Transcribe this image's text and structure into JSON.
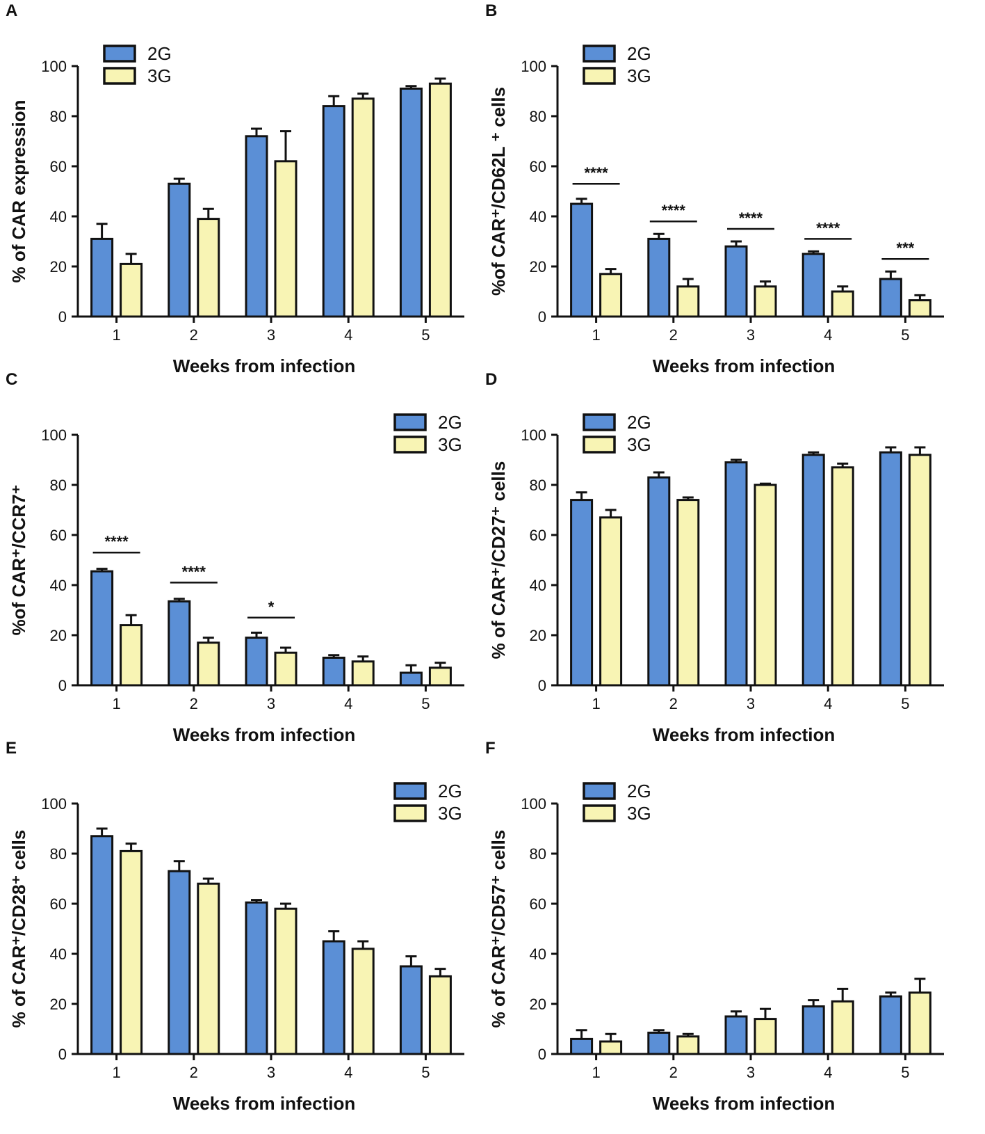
{
  "colors": {
    "g2": "#5b8fd6",
    "g3": "#f8f4b4",
    "stroke": "#111111"
  },
  "chart_data": [
    {
      "panel": "A",
      "type": "bar",
      "categories": [
        "1",
        "2",
        "3",
        "4",
        "5"
      ],
      "series": [
        {
          "name": "2G",
          "values": [
            31,
            53,
            72,
            84,
            91
          ],
          "errors": [
            6,
            2,
            3,
            4,
            1
          ]
        },
        {
          "name": "3G",
          "values": [
            21,
            39,
            62,
            87,
            93
          ],
          "errors": [
            4,
            4,
            12,
            2,
            2
          ]
        }
      ],
      "ylim": [
        0,
        100
      ],
      "yticks": [
        "0",
        "20",
        "40",
        "60",
        "80",
        "100"
      ],
      "ylabel": "% of CAR expression",
      "xlabel": "Weeks from infection",
      "legend": "top-left",
      "significance": []
    },
    {
      "panel": "B",
      "type": "bar",
      "categories": [
        "1",
        "2",
        "3",
        "4",
        "5"
      ],
      "series": [
        {
          "name": "2G",
          "values": [
            45,
            31,
            28,
            25,
            15
          ],
          "errors": [
            2,
            2,
            2,
            1,
            3
          ]
        },
        {
          "name": "3G",
          "values": [
            17,
            12,
            12,
            10,
            6.5
          ],
          "errors": [
            2,
            3,
            2,
            2,
            2
          ]
        }
      ],
      "ylim": [
        0,
        100
      ],
      "yticks": [
        "0",
        "20",
        "40",
        "60",
        "80",
        "100"
      ],
      "ylabel": "%of CAR⁺/CD62L ⁺ cells",
      "xlabel": "Weeks from infection",
      "legend": "top-left",
      "significance": [
        {
          "group": 0,
          "label": "****",
          "level": 53
        },
        {
          "group": 1,
          "label": "****",
          "level": 38
        },
        {
          "group": 2,
          "label": "****",
          "level": 35
        },
        {
          "group": 3,
          "label": "****",
          "level": 31
        },
        {
          "group": 4,
          "label": "***",
          "level": 23
        }
      ]
    },
    {
      "panel": "C",
      "type": "bar",
      "categories": [
        "1",
        "2",
        "3",
        "4",
        "5"
      ],
      "series": [
        {
          "name": "2G",
          "values": [
            45.5,
            33.5,
            19,
            11,
            5
          ],
          "errors": [
            1,
            1,
            2,
            1,
            3
          ]
        },
        {
          "name": "3G",
          "values": [
            24,
            17,
            13,
            9.5,
            7
          ],
          "errors": [
            4,
            2,
            2,
            2,
            2
          ]
        }
      ],
      "ylim": [
        0,
        100
      ],
      "yticks": [
        "0",
        "20",
        "40",
        "60",
        "80",
        "100"
      ],
      "ylabel": "%of CAR⁺/CCR7⁺",
      "xlabel": "Weeks from infection",
      "legend": "top-right",
      "significance": [
        {
          "group": 0,
          "label": "****",
          "level": 53
        },
        {
          "group": 1,
          "label": "****",
          "level": 41
        },
        {
          "group": 2,
          "label": "*",
          "level": 27
        }
      ]
    },
    {
      "panel": "D",
      "type": "bar",
      "categories": [
        "1",
        "2",
        "3",
        "4",
        "5"
      ],
      "series": [
        {
          "name": "2G",
          "values": [
            74,
            83,
            89,
            92,
            93
          ],
          "errors": [
            3,
            2,
            1,
            1,
            2
          ]
        },
        {
          "name": "3G",
          "values": [
            67,
            74,
            80,
            87,
            92
          ],
          "errors": [
            3,
            1,
            0.5,
            1.5,
            3
          ]
        }
      ],
      "ylim": [
        0,
        100
      ],
      "yticks": [
        "0",
        "20",
        "40",
        "60",
        "80",
        "100"
      ],
      "ylabel": "% of CAR⁺/CD27⁺ cells",
      "xlabel": "Weeks from infection",
      "legend": "top-left",
      "significance": []
    },
    {
      "panel": "E",
      "type": "bar",
      "categories": [
        "1",
        "2",
        "3",
        "4",
        "5"
      ],
      "series": [
        {
          "name": "2G",
          "values": [
            87,
            73,
            60.5,
            45,
            35
          ],
          "errors": [
            3,
            4,
            1,
            4,
            4
          ]
        },
        {
          "name": "3G",
          "values": [
            81,
            68,
            58,
            42,
            31
          ],
          "errors": [
            3,
            2,
            2,
            3,
            3
          ]
        }
      ],
      "ylim": [
        0,
        100
      ],
      "yticks": [
        "0",
        "20",
        "40",
        "60",
        "80",
        "100"
      ],
      "ylabel": "% of CAR⁺/CD28⁺ cells",
      "xlabel": "Weeks from infection",
      "legend": "top-right",
      "significance": []
    },
    {
      "panel": "F",
      "type": "bar",
      "categories": [
        "1",
        "2",
        "3",
        "4",
        "5"
      ],
      "series": [
        {
          "name": "2G",
          "values": [
            6,
            8.5,
            15,
            19,
            23
          ],
          "errors": [
            3.5,
            1,
            2,
            2.5,
            1.5
          ]
        },
        {
          "name": "3G",
          "values": [
            5,
            7,
            14,
            21,
            24.5
          ],
          "errors": [
            3,
            1,
            4,
            5,
            5.5
          ]
        }
      ],
      "ylim": [
        0,
        100
      ],
      "yticks": [
        "0",
        "20",
        "40",
        "60",
        "80",
        "100"
      ],
      "ylabel": "% of CAR⁺/CD57⁺ cells",
      "xlabel": "Weeks from infection",
      "legend": "top-left",
      "significance": []
    }
  ]
}
